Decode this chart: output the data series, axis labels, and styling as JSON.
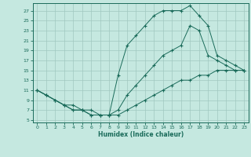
{
  "xlabel": "Humidex (Indice chaleur)",
  "bg_color": "#c5e8e0",
  "line_color": "#1a6b5a",
  "grid_color": "#a0c8c0",
  "xlim": [
    -0.5,
    23.5
  ],
  "ylim": [
    4.5,
    28.5
  ],
  "xticks": [
    0,
    1,
    2,
    3,
    4,
    5,
    6,
    7,
    8,
    9,
    10,
    11,
    12,
    13,
    14,
    15,
    16,
    17,
    18,
    19,
    20,
    21,
    22,
    23
  ],
  "yticks": [
    5,
    7,
    9,
    11,
    13,
    15,
    17,
    19,
    21,
    23,
    25,
    27
  ],
  "line1_x": [
    0,
    1,
    2,
    3,
    4,
    5,
    6,
    7,
    8,
    9,
    10,
    11,
    12,
    13,
    14,
    15,
    16,
    17,
    18,
    19,
    20,
    21,
    22,
    23
  ],
  "line1_y": [
    11,
    10,
    9,
    8,
    7,
    7,
    6,
    6,
    6,
    6,
    7,
    8,
    9,
    10,
    11,
    12,
    13,
    13,
    14,
    14,
    15,
    15,
    15,
    15
  ],
  "line2_x": [
    0,
    1,
    2,
    3,
    4,
    5,
    6,
    7,
    8,
    9,
    10,
    11,
    12,
    13,
    14,
    15,
    16,
    17,
    18,
    19,
    20,
    21,
    22,
    23
  ],
  "line2_y": [
    11,
    10,
    9,
    8,
    7,
    7,
    6,
    6,
    6,
    14,
    20,
    22,
    24,
    26,
    27,
    27,
    27,
    28,
    26,
    24,
    18,
    17,
    16,
    15
  ],
  "line3_x": [
    0,
    1,
    2,
    3,
    4,
    5,
    6,
    7,
    8,
    9,
    10,
    11,
    12,
    13,
    14,
    15,
    16,
    17,
    18,
    19,
    20,
    21,
    22,
    23
  ],
  "line3_y": [
    11,
    10,
    9,
    8,
    8,
    7,
    7,
    6,
    6,
    7,
    10,
    12,
    14,
    16,
    18,
    19,
    20,
    24,
    23,
    18,
    17,
    16,
    15,
    15
  ]
}
